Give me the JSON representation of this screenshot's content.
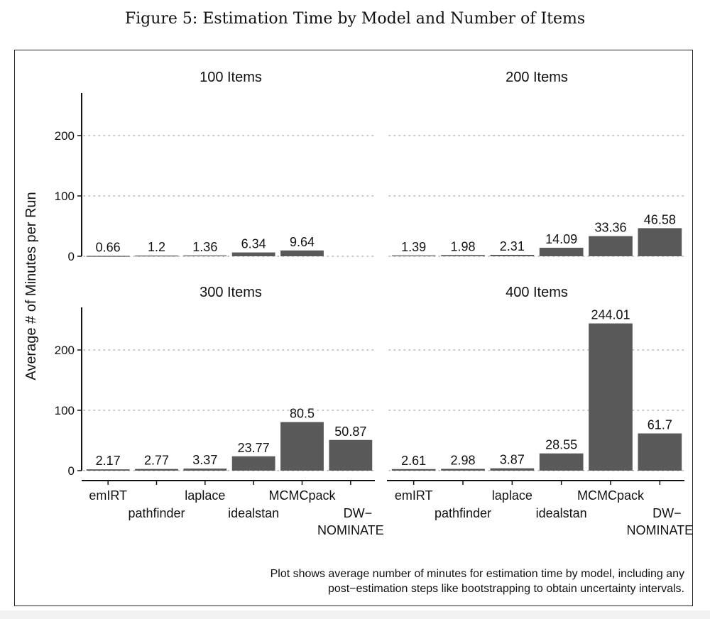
{
  "figure_title": "Figure 5: Estimation Time by Model and Number of Items",
  "caption": {
    "line1": "Plot shows average number of minutes for estimation time by model, including any",
    "line2": "post−estimation steps like bootstrapping to obtain uncertainty intervals."
  },
  "chart_data": {
    "type": "bar",
    "ylabel": "Average # of Minutes per Run",
    "xlabel": "",
    "ylim": [
      0,
      260
    ],
    "yticks": [
      0,
      100,
      200
    ],
    "grid": "horizontal dotted",
    "categories": [
      "emIRT",
      "pathfinder",
      "laplace",
      "idealstan",
      "MCMCpack",
      "DW−NOMINATE"
    ],
    "category_label_lines": [
      [
        "emIRT"
      ],
      [
        "pathfinder"
      ],
      [
        "laplace"
      ],
      [
        "idealstan"
      ],
      [
        "MCMCpack"
      ],
      [
        "DW−",
        "NOMINATE"
      ]
    ],
    "bar_color": "#595959",
    "panels": [
      {
        "title": "100 Items",
        "values": [
          0.66,
          1.2,
          1.36,
          6.34,
          9.64,
          null
        ],
        "labels": [
          "0.66",
          "1.2",
          "1.36",
          "6.34",
          "9.64",
          ""
        ]
      },
      {
        "title": "200 Items",
        "values": [
          1.39,
          1.98,
          2.31,
          14.09,
          33.36,
          46.58
        ],
        "labels": [
          "1.39",
          "1.98",
          "2.31",
          "14.09",
          "33.36",
          "46.58"
        ]
      },
      {
        "title": "300 Items",
        "values": [
          2.17,
          2.77,
          3.37,
          23.77,
          80.5,
          50.87
        ],
        "labels": [
          "2.17",
          "2.77",
          "3.37",
          "23.77",
          "80.5",
          "50.87"
        ]
      },
      {
        "title": "400 Items",
        "values": [
          2.61,
          2.98,
          3.87,
          28.55,
          244.01,
          61.7
        ],
        "labels": [
          "2.61",
          "2.98",
          "3.87",
          "28.55",
          "244.01",
          "61.7"
        ]
      }
    ]
  }
}
